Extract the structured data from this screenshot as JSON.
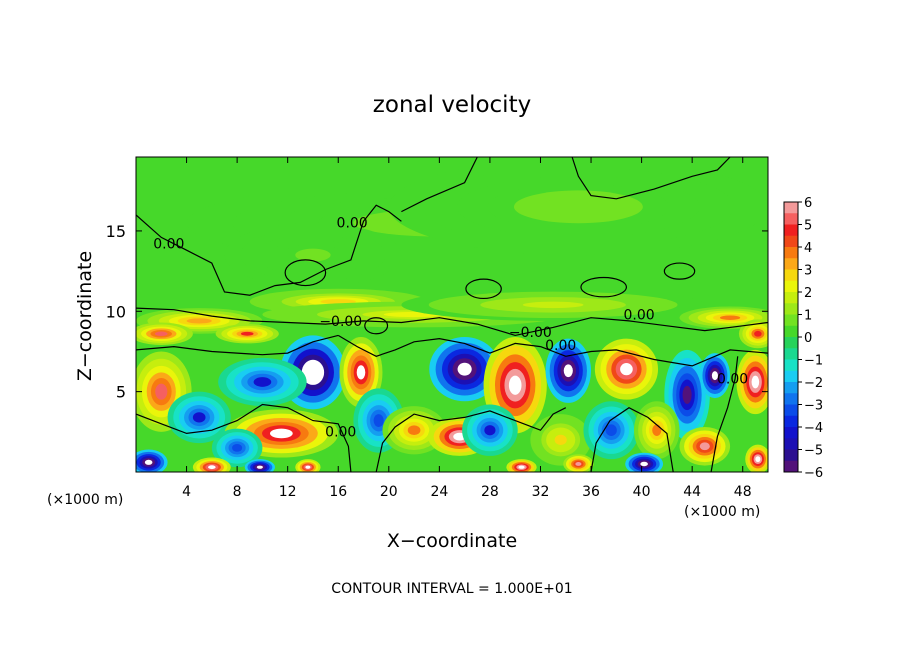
{
  "chart_data": {
    "type": "heatmap",
    "title": "zonal velocity",
    "xlabel": "X−coordinate",
    "ylabel": "Z−coordinate",
    "x_unit": "(×1000 m)",
    "x_unit_right": "(×1000 m)",
    "footer": "CONTOUR INTERVAL = 1.000E+01",
    "xlim": [
      0,
      50
    ],
    "ylim": [
      0,
      19.6
    ],
    "x_ticks": [
      4,
      8,
      12,
      16,
      20,
      24,
      28,
      32,
      36,
      40,
      44,
      48
    ],
    "y_ticks": [
      5,
      10,
      15
    ],
    "colorbar": {
      "ticks": [
        "6",
        "5",
        "4",
        "3",
        "2",
        "1",
        "0",
        "−1",
        "−2",
        "−3",
        "−4",
        "−5",
        "−6"
      ],
      "levels": [
        {
          "from": 5.5,
          "to": 6,
          "color": "#f39a9a"
        },
        {
          "from": 5,
          "to": 5.5,
          "color": "#f56060"
        },
        {
          "from": 4.5,
          "to": 5,
          "color": "#f02020"
        },
        {
          "from": 4,
          "to": 4.5,
          "color": "#f04818"
        },
        {
          "from": 3.5,
          "to": 4,
          "color": "#f77a10"
        },
        {
          "from": 3,
          "to": 3.5,
          "color": "#fba818"
        },
        {
          "from": 2.5,
          "to": 3,
          "color": "#f6d80e"
        },
        {
          "from": 2,
          "to": 2.5,
          "color": "#eaf50a"
        },
        {
          "from": 1.5,
          "to": 2,
          "color": "#c6ee0e"
        },
        {
          "from": 1,
          "to": 1.5,
          "color": "#9ee818"
        },
        {
          "from": 0.5,
          "to": 1,
          "color": "#72e222"
        },
        {
          "from": 0,
          "to": 0.5,
          "color": "#46d82a"
        },
        {
          "from": -0.5,
          "to": 0,
          "color": "#26d25a"
        },
        {
          "from": -1,
          "to": -0.5,
          "color": "#1ad890"
        },
        {
          "from": -1.5,
          "to": -1,
          "color": "#18e2c6"
        },
        {
          "from": -2,
          "to": -1.5,
          "color": "#19cdf2"
        },
        {
          "from": -2.5,
          "to": -2,
          "color": "#159ef0"
        },
        {
          "from": -3,
          "to": -2.5,
          "color": "#1074ee"
        },
        {
          "from": -3.5,
          "to": -3,
          "color": "#0b4ce8"
        },
        {
          "from": -4,
          "to": -3.5,
          "color": "#0a28e0"
        },
        {
          "from": -4.5,
          "to": -4,
          "color": "#1212cc"
        },
        {
          "from": -5,
          "to": -4.5,
          "color": "#1c10b4"
        },
        {
          "from": -5.5,
          "to": -5,
          "color": "#2c1090"
        },
        {
          "from": -6,
          "to": -5.5,
          "color": "#52127a"
        }
      ]
    },
    "contour_labels": [
      {
        "text": "0.00",
        "x": 2.6,
        "z": 13.9
      },
      {
        "text": "0.00",
        "x": 17.1,
        "z": 15.2
      },
      {
        "text": "−0.00",
        "x": 16.2,
        "z": 9.1
      },
      {
        "text": "−0.00",
        "x": 31.2,
        "z": 8.4
      },
      {
        "text": "0.00",
        "x": 39.8,
        "z": 9.5
      },
      {
        "text": "0.00",
        "x": 33.6,
        "z": 7.6
      },
      {
        "text": "0.00",
        "x": 16.2,
        "z": 2.2
      },
      {
        "text": "0.00",
        "x": 47.2,
        "z": 5.5
      }
    ],
    "field_features": [
      {
        "x": 24,
        "z": 15.5,
        "rx": 20,
        "rz": 2.5,
        "v": 0.7
      },
      {
        "x": 35,
        "z": 16.5,
        "rx": 15,
        "rz": 3,
        "v": 0.6
      },
      {
        "x": 14,
        "z": 13.5,
        "rx": 7,
        "rz": 2,
        "v": 0.5
      },
      {
        "x": 16,
        "z": 10.6,
        "rx": 7,
        "rz": 0.8,
        "v": 2.4
      },
      {
        "x": 22,
        "z": 9.8,
        "rx": 12,
        "rz": 0.8,
        "v": 2.0
      },
      {
        "x": 33,
        "z": 10.4,
        "rx": 12,
        "rz": 1.0,
        "v": 1.6
      },
      {
        "x": 5,
        "z": 9.4,
        "rx": 5,
        "rz": 0.8,
        "v": 3.0
      },
      {
        "x": 47,
        "z": 9.6,
        "rx": 4,
        "rz": 0.7,
        "v": 3.2
      },
      {
        "x": 2.0,
        "z": 8.6,
        "rx": 2.5,
        "rz": 0.7,
        "v": 4.5
      },
      {
        "x": 8.8,
        "z": 8.6,
        "rx": 2.5,
        "rz": 0.6,
        "v": 4.0
      },
      {
        "x": 49.2,
        "z": 8.6,
        "rx": 1.5,
        "rz": 0.9,
        "v": 4.2
      },
      {
        "x": 14.0,
        "z": 6.2,
        "rx": 2.6,
        "rz": 2.3,
        "v": -7.5
      },
      {
        "x": 10.0,
        "z": 5.6,
        "rx": 3.5,
        "rz": 1.5,
        "v": -3.5
      },
      {
        "x": 17.8,
        "z": 6.2,
        "rx": 1.7,
        "rz": 2.2,
        "v": 5.5
      },
      {
        "x": 26.0,
        "z": 6.4,
        "rx": 2.8,
        "rz": 2.0,
        "v": -6.5
      },
      {
        "x": 30.0,
        "z": 5.4,
        "rx": 2.5,
        "rz": 3.0,
        "v": 7.0
      },
      {
        "x": 34.2,
        "z": 6.3,
        "rx": 1.8,
        "rz": 2.0,
        "v": -6.5
      },
      {
        "x": 38.8,
        "z": 6.4,
        "rx": 2.5,
        "rz": 1.9,
        "v": 6.2
      },
      {
        "x": 43.6,
        "z": 4.8,
        "rx": 1.8,
        "rz": 2.8,
        "v": -5.0
      },
      {
        "x": 45.8,
        "z": 6.0,
        "rx": 1.2,
        "rz": 1.4,
        "v": -7.0
      },
      {
        "x": 49.0,
        "z": 5.6,
        "rx": 1.5,
        "rz": 2.0,
        "v": 6.5
      },
      {
        "x": 2.0,
        "z": 5.0,
        "rx": 2.4,
        "rz": 2.5,
        "v": 4.5
      },
      {
        "x": 5.0,
        "z": 3.4,
        "rx": 2.5,
        "rz": 1.6,
        "v": -3.5
      },
      {
        "x": 11.5,
        "z": 2.4,
        "rx": 4.5,
        "rz": 1.5,
        "v": 5.5
      },
      {
        "x": 8.0,
        "z": 1.5,
        "rx": 2.0,
        "rz": 1.2,
        "v": -3.0
      },
      {
        "x": 19.2,
        "z": 3.2,
        "rx": 2.0,
        "rz": 2.0,
        "v": -3.0
      },
      {
        "x": 22.0,
        "z": 2.6,
        "rx": 2.5,
        "rz": 1.5,
        "v": 3.2
      },
      {
        "x": 25.6,
        "z": 2.2,
        "rx": 2.5,
        "rz": 1.2,
        "v": 6.5
      },
      {
        "x": 28.0,
        "z": 2.6,
        "rx": 2.2,
        "rz": 1.6,
        "v": -3.5
      },
      {
        "x": 33.6,
        "z": 2.0,
        "rx": 2.4,
        "rz": 1.6,
        "v": 2.2
      },
      {
        "x": 37.6,
        "z": 2.6,
        "rx": 2.2,
        "rz": 1.8,
        "v": -3.0
      },
      {
        "x": 41.2,
        "z": 2.6,
        "rx": 1.8,
        "rz": 1.8,
        "v": 3.2
      },
      {
        "x": 45.0,
        "z": 1.6,
        "rx": 2.0,
        "rz": 1.2,
        "v": 5.0
      },
      {
        "x": 1.0,
        "z": 0.6,
        "rx": 1.5,
        "rz": 0.8,
        "v": -7.0
      },
      {
        "x": 6.0,
        "z": 0.3,
        "rx": 1.5,
        "rz": 0.6,
        "v": 6.0
      },
      {
        "x": 9.8,
        "z": 0.3,
        "rx": 1.2,
        "rz": 0.5,
        "v": -6.5
      },
      {
        "x": 13.6,
        "z": 0.3,
        "rx": 1.0,
        "rz": 0.5,
        "v": 6.0
      },
      {
        "x": 30.5,
        "z": 0.3,
        "rx": 1.2,
        "rz": 0.5,
        "v": 6.5
      },
      {
        "x": 35.0,
        "z": 0.5,
        "rx": 1.2,
        "rz": 0.6,
        "v": 5.0
      },
      {
        "x": 40.2,
        "z": 0.5,
        "rx": 1.5,
        "rz": 0.7,
        "v": -6.5
      },
      {
        "x": 49.2,
        "z": 0.8,
        "rx": 1.0,
        "rz": 0.9,
        "v": 6.5
      }
    ]
  }
}
